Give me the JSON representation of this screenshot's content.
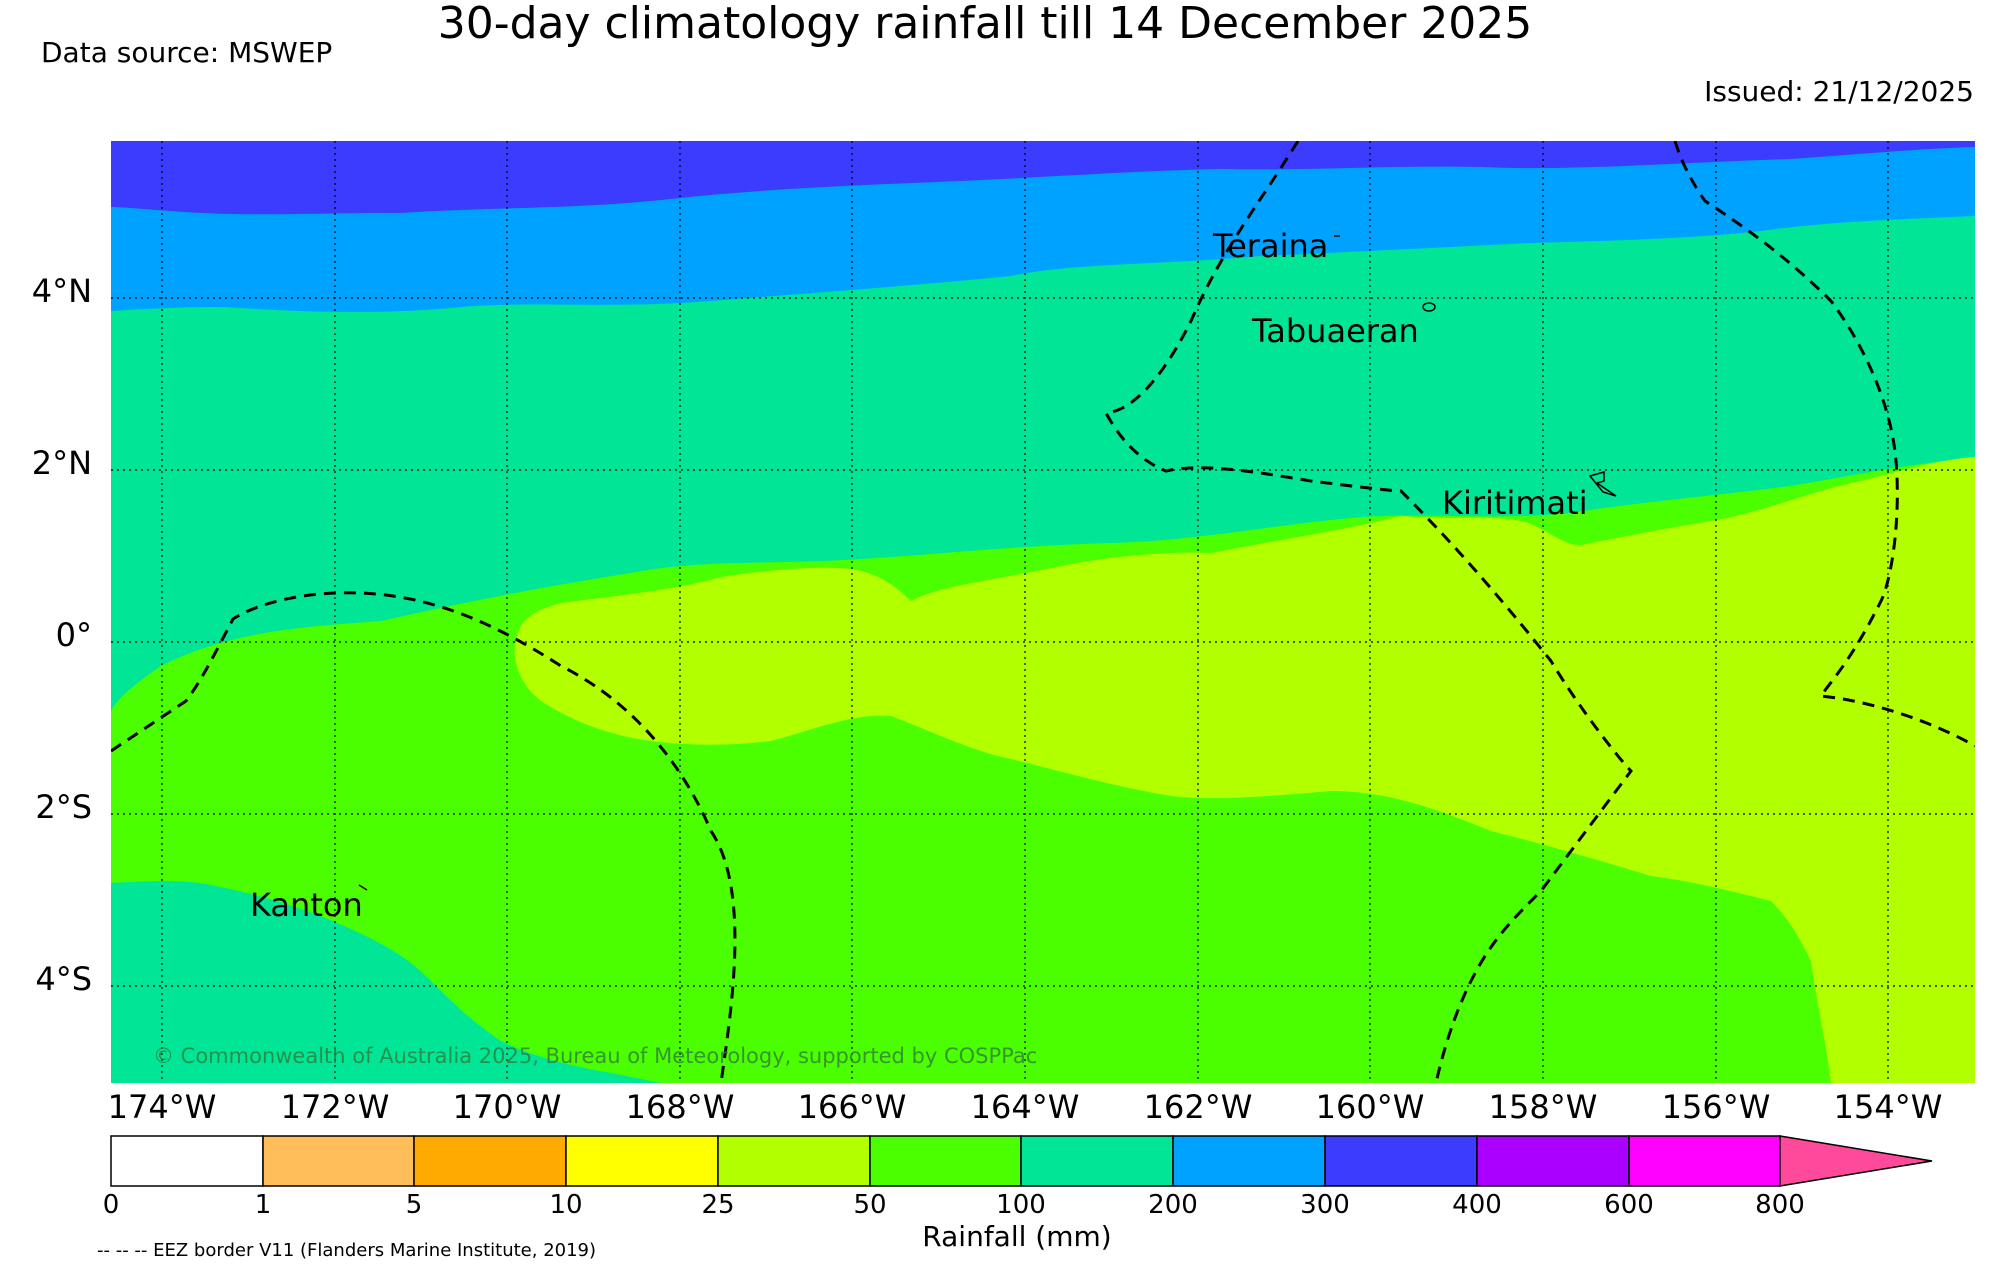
{
  "header": {
    "title": "30-day climatology rainfall till 14 December 2025",
    "source": "Data source: MSWEP",
    "issued": "Issued: 21/12/2025"
  },
  "map": {
    "latitude_labels": [
      "4°N",
      "2°N",
      "0°",
      "2°S",
      "4°S"
    ],
    "longitude_labels": [
      "174°W",
      "172°W",
      "170°W",
      "168°W",
      "166°W",
      "164°W",
      "162°W",
      "160°W",
      "158°W",
      "156°W",
      "154°W"
    ],
    "islands": [
      "Teraina",
      "Tabuaeran",
      "Kiritimati",
      "Kanton"
    ],
    "copyright": "© Commonwealth of Australia 2025, Bureau of Meteorology, supported by COSPPac",
    "fill_colors": {
      "r300_400": "#3c3cff",
      "r200_300": "#00a2ff",
      "r100_200": "#00e696",
      "r50_100": "#4bff00",
      "r25_50": "#b2ff00"
    }
  },
  "colorbar": {
    "title": "Rainfall (mm)",
    "ticks": [
      "0",
      "1",
      "5",
      "10",
      "25",
      "50",
      "100",
      "200",
      "300",
      "400",
      "600",
      "800"
    ],
    "colors": [
      "#ffffff",
      "#ffbe5a",
      "#ffaa00",
      "#ffff00",
      "#b2ff00",
      "#4bff00",
      "#00e696",
      "#00a2ff",
      "#3c3cff",
      "#aa00ff",
      "#ff00ff",
      "#ff4a9c"
    ]
  },
  "footer": {
    "eez_note": "-- -- -- EEZ border V11 (Flanders Marine Institute, 2019)"
  }
}
